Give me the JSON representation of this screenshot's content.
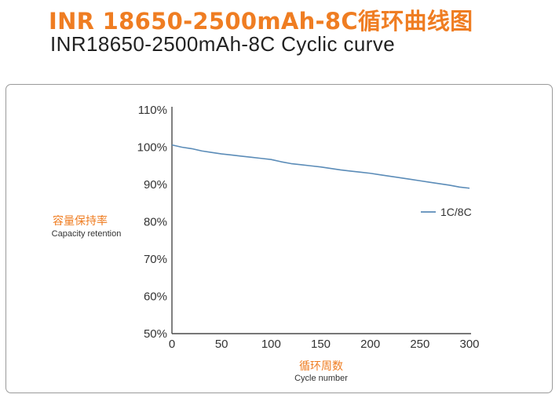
{
  "header": {
    "title_cn": "INR 18650-2500mAh-8C循环曲线图",
    "title_en": "INR18650-2500mAh-8C Cyclic curve"
  },
  "colors": {
    "accent": "#ef7d22",
    "series": "#5b8cb8",
    "axis": "#4a4a4a",
    "frame": "#9a9a9a"
  },
  "chart_data": {
    "type": "line",
    "title": "",
    "xlabel_cn": "循环周数",
    "xlabel_en": "Cycle number",
    "ylabel_cn": "容量保持率",
    "ylabel_en": "Capacity retention",
    "xlim": [
      0,
      300
    ],
    "ylim": [
      50,
      110
    ],
    "x_ticks": [
      "0",
      "50",
      "100",
      "150",
      "200",
      "250",
      "300"
    ],
    "y_ticks": [
      "50%",
      "60%",
      "70%",
      "80%",
      "90%",
      "100%",
      "110%"
    ],
    "grid": false,
    "legend_position": "right",
    "series": [
      {
        "name": "1C/8C",
        "x": [
          0,
          10,
          20,
          30,
          40,
          50,
          60,
          70,
          80,
          90,
          100,
          110,
          120,
          130,
          140,
          150,
          160,
          170,
          180,
          190,
          200,
          210,
          220,
          230,
          240,
          250,
          260,
          270,
          280,
          290,
          300
        ],
        "y": [
          100.6,
          100.0,
          99.6,
          99.0,
          98.6,
          98.2,
          97.9,
          97.6,
          97.3,
          97.0,
          96.7,
          96.1,
          95.6,
          95.3,
          95.0,
          94.7,
          94.3,
          93.9,
          93.6,
          93.3,
          93.0,
          92.6,
          92.2,
          91.8,
          91.4,
          91.0,
          90.6,
          90.2,
          89.8,
          89.3,
          89.0
        ]
      }
    ]
  }
}
